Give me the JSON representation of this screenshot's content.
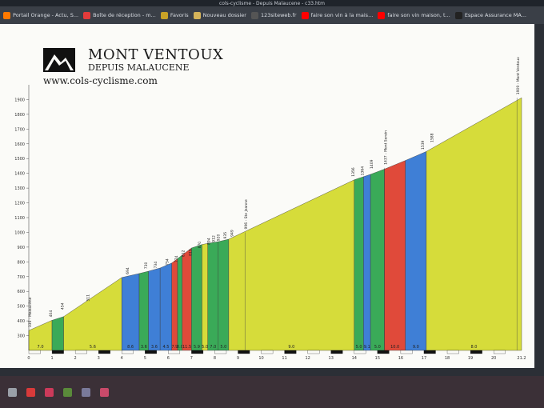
{
  "window": {
    "title": "cols-cyclisme - Depuis Malaucene - c33.htm"
  },
  "bookmarks": [
    {
      "label": "Portail Orange - Actu, S...",
      "icon": "orange-icon",
      "color": "#ff7900"
    },
    {
      "label": "Boîte de réception - m...",
      "icon": "mail-icon",
      "color": "#e33b3b"
    },
    {
      "label": "Favoris",
      "icon": "star-icon",
      "color": "#c9a227"
    },
    {
      "label": "Nouveau dossier",
      "icon": "folder-icon",
      "color": "#d6b45a"
    },
    {
      "label": "123siteweb.fr",
      "icon": "site-icon",
      "color": "#555555"
    },
    {
      "label": "faire son vin à la mais...",
      "icon": "youtube-icon",
      "color": "#ff0000"
    },
    {
      "label": "faire son vin maison, t...",
      "icon": "youtube-icon",
      "color": "#ff0000"
    },
    {
      "label": "Espace Assurance MA...",
      "icon": "page-icon",
      "color": "#222222"
    }
  ],
  "page": {
    "title": "MONT VENTOUX",
    "subtitle": "DEPUIS MALAUCENE",
    "site": "www.cols-cyclisme.com"
  },
  "chart_data": {
    "type": "area",
    "ylim": [
      200,
      2000
    ],
    "xlim": [
      0,
      21.2
    ],
    "y_ticks": [
      300,
      400,
      500,
      600,
      700,
      800,
      900,
      1000,
      1100,
      1200,
      1300,
      1400,
      1500,
      1600,
      1700,
      1800,
      1900
    ],
    "x_ticks": [
      "0",
      "1",
      "2",
      "3",
      "4",
      "5",
      "6",
      "7",
      "8",
      "9",
      "10",
      "11",
      "12",
      "13",
      "14",
      "15",
      "16",
      "17",
      "18",
      "19",
      "20",
      "21.2"
    ],
    "profile": [
      [
        0,
        335
      ],
      [
        1,
        404
      ],
      [
        2,
        454
      ],
      [
        4,
        694
      ],
      [
        5,
        730
      ],
      [
        6,
        774
      ],
      [
        7,
        894
      ],
      [
        7.5,
        920
      ],
      [
        8.5,
        946
      ],
      [
        14,
        1356
      ],
      [
        15,
        1409
      ],
      [
        17,
        1539
      ],
      [
        21.2,
        1912
      ]
    ],
    "segments": [
      {
        "x0": 0,
        "x1": 1,
        "grade": "7.0",
        "color": "#d6dc3a"
      },
      {
        "x0": 1,
        "x1": 1.5,
        "grade": "",
        "color": "#3aaa58"
      },
      {
        "x0": 1.5,
        "x1": 4,
        "grade": "5.6",
        "color": "#d6dc3a"
      },
      {
        "x0": 4,
        "x1": 4.75,
        "grade": "8.6",
        "color": "#3f7fd6"
      },
      {
        "x0": 4.75,
        "x1": 5.15,
        "grade": "3.6",
        "color": "#3aaa58"
      },
      {
        "x0": 5.15,
        "x1": 5.65,
        "grade": "3.6",
        "color": "#3f7fd6"
      },
      {
        "x0": 5.65,
        "x1": 6.15,
        "grade": "4.5",
        "color": "#3f7fd6"
      },
      {
        "x0": 6.15,
        "x1": 6.4,
        "grade": "7.9",
        "color": "#e04a3a"
      },
      {
        "x0": 6.4,
        "x1": 6.6,
        "grade": "8.0",
        "color": "#3aaa58"
      },
      {
        "x0": 6.6,
        "x1": 7.0,
        "grade": "11.5",
        "color": "#e04a3a"
      },
      {
        "x0": 7.0,
        "x1": 7.45,
        "grade": "5.9",
        "color": "#3aaa58"
      },
      {
        "x0": 7.45,
        "x1": 7.7,
        "grade": "5.0",
        "color": "#d6dc3a"
      },
      {
        "x0": 7.7,
        "x1": 8.15,
        "grade": "7.0",
        "color": "#3aaa58"
      },
      {
        "x0": 8.15,
        "x1": 8.6,
        "grade": "5.0",
        "color": "#3aaa58"
      },
      {
        "x0": 8.6,
        "x1": 14,
        "grade": "9.0",
        "color": "#d6dc3a"
      },
      {
        "x0": 14,
        "x1": 14.4,
        "grade": "5.0",
        "color": "#3aaa58"
      },
      {
        "x0": 14.4,
        "x1": 14.7,
        "grade": "9.1",
        "color": "#3f7fd6"
      },
      {
        "x0": 14.7,
        "x1": 15.3,
        "grade": "5.0",
        "color": "#3aaa58"
      },
      {
        "x0": 15.3,
        "x1": 16.2,
        "grade": "10.0",
        "color": "#e04a3a"
      },
      {
        "x0": 16.2,
        "x1": 17.1,
        "grade": "9.0",
        "color": "#3f7fd6"
      },
      {
        "x0": 17.1,
        "x1": 21.2,
        "grade": "8.0",
        "color": "#d6dc3a"
      }
    ],
    "altitude_labels": [
      {
        "x": 1,
        "y": 404,
        "text": "404"
      },
      {
        "x": 1.5,
        "y": 454,
        "text": "454"
      },
      {
        "x": 2.6,
        "y": 511,
        "text": "511"
      },
      {
        "x": 4.3,
        "y": 694,
        "text": "694"
      },
      {
        "x": 5.1,
        "y": 730,
        "text": "730"
      },
      {
        "x": 5.5,
        "y": 734,
        "text": "734"
      },
      {
        "x": 6.0,
        "y": 754,
        "text": "754"
      },
      {
        "x": 6.4,
        "y": 774,
        "text": "774"
      },
      {
        "x": 6.7,
        "y": 812,
        "text": "812"
      },
      {
        "x": 7.0,
        "y": 819,
        "text": "819"
      },
      {
        "x": 7.4,
        "y": 870,
        "text": "870"
      },
      {
        "x": 7.8,
        "y": 894,
        "text": "894"
      },
      {
        "x": 8.0,
        "y": 912,
        "text": "912"
      },
      {
        "x": 8.2,
        "y": 920,
        "text": "920"
      },
      {
        "x": 8.5,
        "y": 935,
        "text": "935"
      },
      {
        "x": 8.8,
        "y": 949,
        "text": "949"
      },
      {
        "x": 14.0,
        "y": 1356,
        "text": "1356"
      },
      {
        "x": 14.4,
        "y": 1364,
        "text": "1364"
      },
      {
        "x": 14.8,
        "y": 1409,
        "text": "1409"
      },
      {
        "x": 17.0,
        "y": 1539,
        "text": "1539"
      },
      {
        "x": 17.4,
        "y": 1588,
        "text": "1588"
      }
    ],
    "place_labels": [
      {
        "x": 0,
        "y": 335,
        "text": "335 - Malaucène"
      },
      {
        "x": 9.3,
        "y": 1000,
        "text": "996 - Ste Jeanne"
      },
      {
        "x": 15.3,
        "y": 1437,
        "text": "1437 - Mont Serein"
      },
      {
        "x": 21.0,
        "y": 1912,
        "text": "1909 - Mont Ventoux"
      }
    ]
  },
  "taskbar": [
    {
      "icon": "search-icon",
      "color": "#9aa0a8"
    },
    {
      "icon": "pdf-icon",
      "color": "#d93a3a"
    },
    {
      "icon": "link-icon",
      "color": "#cc3a5a"
    },
    {
      "icon": "game-icon",
      "color": "#5a8a3a"
    },
    {
      "icon": "people-icon",
      "color": "#7a7a9a"
    },
    {
      "icon": "photo-icon",
      "color": "#c94a6a"
    }
  ]
}
